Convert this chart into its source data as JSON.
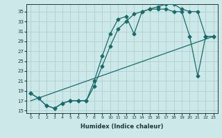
{
  "bg_color": "#cce8e8",
  "grid_color": "#aacccc",
  "line_color": "#1a6b6b",
  "xlabel": "Humidex (Indice chaleur)",
  "xlim": [
    -0.5,
    23.5
  ],
  "ylim": [
    14.5,
    36.5
  ],
  "xticks": [
    0,
    1,
    2,
    3,
    4,
    5,
    6,
    7,
    8,
    9,
    10,
    11,
    12,
    13,
    14,
    15,
    16,
    17,
    18,
    19,
    20,
    21,
    22,
    23
  ],
  "yticks": [
    15,
    17,
    19,
    21,
    23,
    25,
    27,
    29,
    31,
    33,
    35
  ],
  "curve1_x": [
    0,
    1,
    2,
    3,
    4,
    5,
    6,
    7,
    8,
    9,
    10,
    11,
    12,
    13,
    14,
    15,
    16,
    17,
    18,
    19,
    20,
    21,
    22,
    23
  ],
  "curve1_y": [
    18.5,
    17.5,
    16.0,
    15.5,
    16.5,
    17.0,
    17.0,
    17.0,
    21.0,
    26.0,
    30.5,
    33.5,
    34.0,
    30.5,
    35.0,
    35.5,
    36.0,
    36.5,
    36.5,
    35.5,
    35.0,
    35.0,
    30.0,
    30.0
  ],
  "curve2_x": [
    0,
    1,
    2,
    3,
    4,
    5,
    6,
    7,
    8,
    9,
    10,
    11,
    12,
    13,
    14,
    15,
    16,
    17,
    18,
    19,
    20,
    21,
    22,
    23
  ],
  "curve2_y": [
    18.5,
    17.5,
    16.0,
    15.5,
    16.5,
    17.0,
    17.0,
    17.0,
    20.0,
    24.0,
    28.0,
    31.5,
    33.0,
    34.5,
    35.0,
    35.5,
    35.5,
    35.5,
    35.0,
    35.0,
    30.0,
    22.0,
    30.0,
    30.0
  ],
  "curve3_x": [
    0,
    23
  ],
  "curve3_y": [
    17.0,
    30.0
  ],
  "lw": 0.9,
  "ms": 2.5
}
